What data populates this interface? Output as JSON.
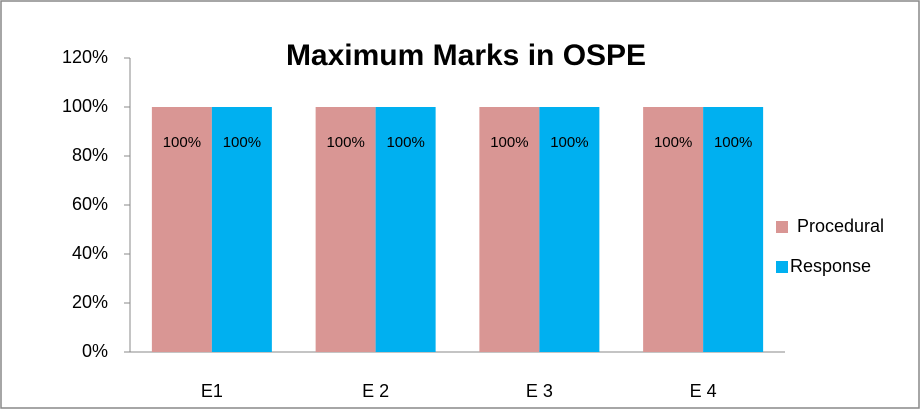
{
  "chart_data": {
    "type": "bar",
    "title": "Maximum Marks in OSPE",
    "categories": [
      "E1",
      "E 2",
      "E 3",
      "E 4"
    ],
    "series": [
      {
        "name": "Procedural",
        "color": "#d99694",
        "values": [
          100,
          100,
          100,
          100
        ],
        "value_labels": [
          "100%",
          "100%",
          "100%",
          "100%"
        ]
      },
      {
        "name": "Response",
        "color": "#00b0f0",
        "values": [
          100,
          100,
          100,
          100
        ],
        "value_labels": [
          "100%",
          "100%",
          "100%",
          "100%"
        ]
      }
    ],
    "ylim": [
      0,
      120
    ],
    "yticks": [
      {
        "value": 0,
        "label": "0%"
      },
      {
        "value": 20,
        "label": "20%"
      },
      {
        "value": 40,
        "label": "40%"
      },
      {
        "value": 60,
        "label": "60%"
      },
      {
        "value": 80,
        "label": "80%"
      },
      {
        "value": 100,
        "label": "100%"
      },
      {
        "value": 120,
        "label": "120%"
      }
    ],
    "legend": "right"
  }
}
